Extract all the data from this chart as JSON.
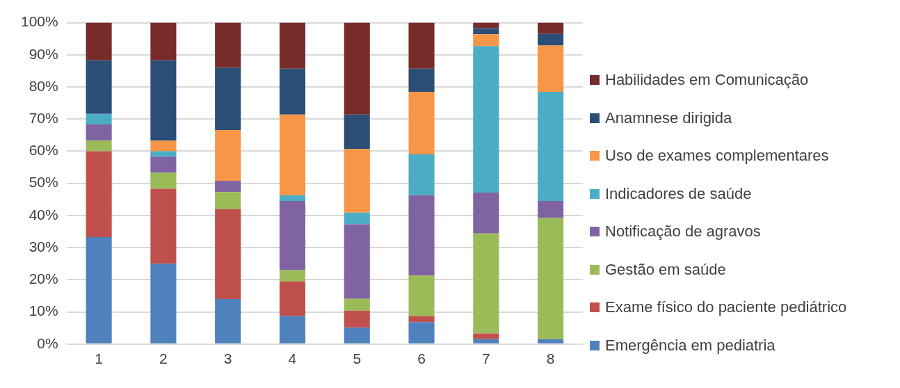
{
  "chart_data": {
    "type": "bar",
    "stacked": true,
    "categories": [
      "1",
      "2",
      "3",
      "4",
      "5",
      "6",
      "7",
      "8"
    ],
    "series": [
      {
        "name": "Emergência em pediatria",
        "color": "#4f81bd",
        "values": [
          33.3,
          25,
          14,
          8.7,
          5.1,
          6.8,
          1.5,
          1.5
        ]
      },
      {
        "name": "Exame físico do paciente pediátrico",
        "color": "#c0504d",
        "values": [
          26.7,
          23.3,
          28,
          10.8,
          5.3,
          1.9,
          1.8,
          0
        ]
      },
      {
        "name": "Gestão em saúde",
        "color": "#9bbb59",
        "values": [
          3.3,
          5,
          5.3,
          3.5,
          3.7,
          12.6,
          31.1,
          37.7
        ]
      },
      {
        "name": "Notificação de agravos",
        "color": "#8064a2",
        "values": [
          5,
          5,
          3.5,
          21.5,
          23.2,
          25,
          12.7,
          5.3
        ]
      },
      {
        "name": "Indicadores de saúde",
        "color": "#4bacc6",
        "values": [
          3.3,
          1.7,
          0,
          1.8,
          3.6,
          12.7,
          45.6,
          34
        ]
      },
      {
        "name": "Uso de exames complementares",
        "color": "#f79646",
        "values": [
          0,
          3.3,
          15.8,
          25.1,
          19.8,
          19.5,
          3.7,
          14.4
        ]
      },
      {
        "name": "Anamnese dirigida",
        "color": "#2c4d75",
        "values": [
          16.7,
          25,
          19.4,
          14.3,
          10.7,
          7.2,
          1.9,
          3.6
        ]
      },
      {
        "name": "Habilidades em Comunicação",
        "color": "#772c2a",
        "values": [
          11.7,
          11.7,
          14,
          14.3,
          28.6,
          14.3,
          1.7,
          3.5
        ]
      }
    ],
    "ylim": [
      0,
      100
    ],
    "yticks": [
      {
        "value": 0,
        "label": "0%"
      },
      {
        "value": 10,
        "label": "10%"
      },
      {
        "value": 20,
        "label": "20%"
      },
      {
        "value": 30,
        "label": "30%"
      },
      {
        "value": 40,
        "label": "40%"
      },
      {
        "value": 50,
        "label": "50%"
      },
      {
        "value": 60,
        "label": "60%"
      },
      {
        "value": 70,
        "label": "70%"
      },
      {
        "value": 80,
        "label": "80%"
      },
      {
        "value": 90,
        "label": "90%"
      },
      {
        "value": 100,
        "label": "100%"
      }
    ],
    "grid": "y",
    "legend": "right"
  }
}
